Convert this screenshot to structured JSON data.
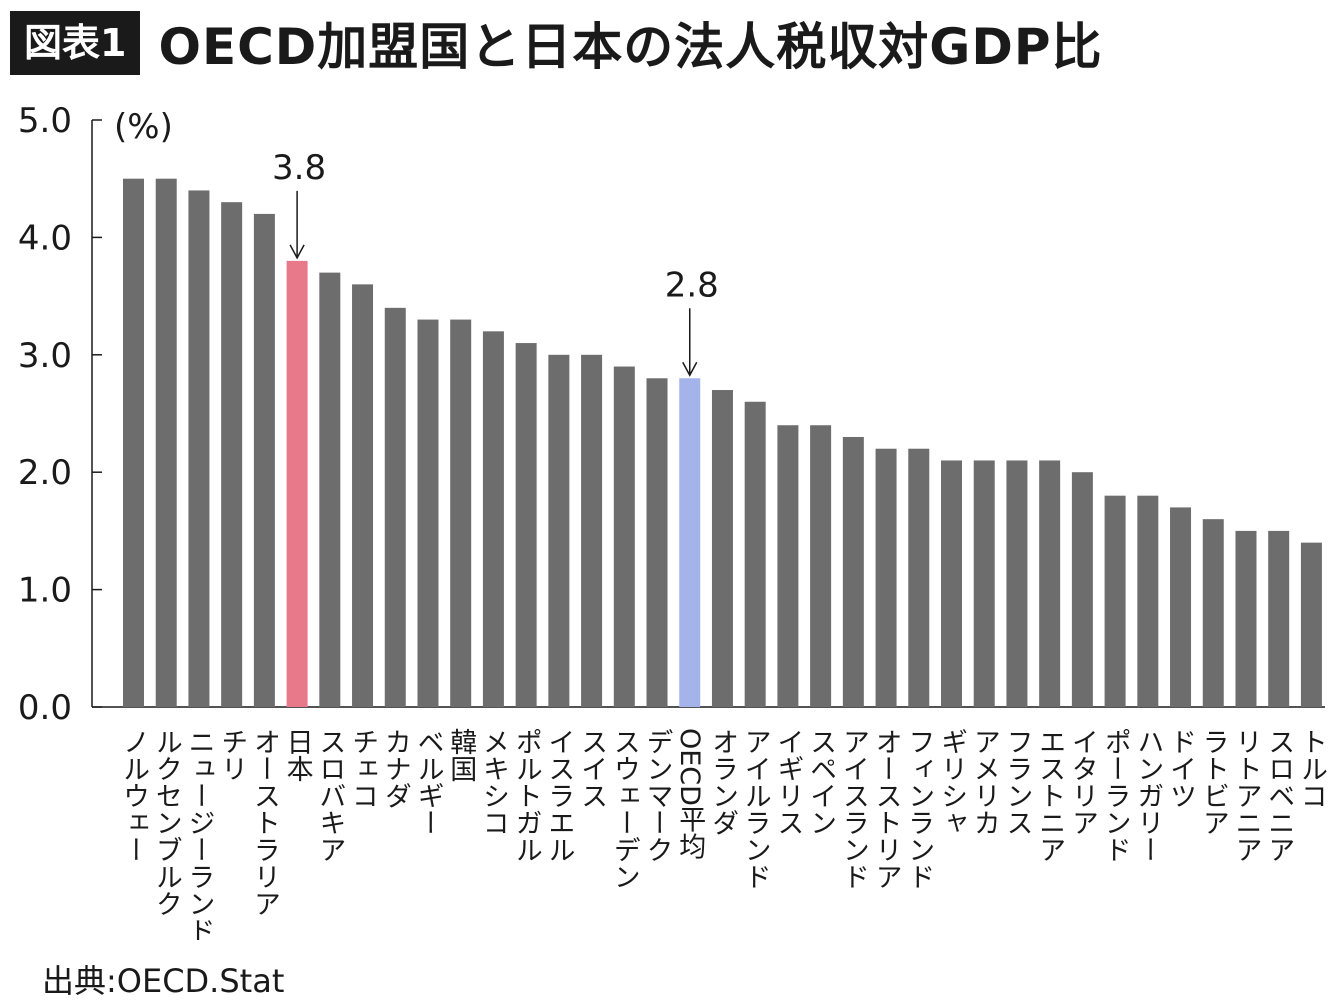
{
  "header": {
    "badge": "図表1",
    "title": "OECD加盟国と日本の法人税収対GDP比"
  },
  "source": "出典:OECD.Stat",
  "colors": {
    "bar_default": "#6d6d6d",
    "bar_japan": "#e8798a",
    "bar_oecd_avg": "#a4b4ea",
    "axis": "#1a1a1a"
  },
  "chart_data": {
    "type": "bar",
    "title": "OECD加盟国と日本の法人税収対GDP比",
    "ylabel": "(%)",
    "xlabel": "",
    "ylim": [
      0,
      5
    ],
    "yticks": [
      "0.0",
      "1.0",
      "2.0",
      "3.0",
      "4.0",
      "5.0"
    ],
    "grid": false,
    "categories": [
      "ノルウェー",
      "ルクセンブルク",
      "ニュージーランド",
      "チリ",
      "オーストラリア",
      "日本",
      "スロバキア",
      "チェコ",
      "カナダ",
      "ベルギー",
      "韓国",
      "メキシコ",
      "ポルトガル",
      "イスラエル",
      "スイス",
      "スウェーデン",
      "デンマーク",
      "OECD平均",
      "オランダ",
      "アイルランド",
      "イギリス",
      "スペイン",
      "アイスランド",
      "オーストリア",
      "フィンランド",
      "ギリシャ",
      "アメリカ",
      "フランス",
      "エストニア",
      "イタリア",
      "ポーランド",
      "ハンガリー",
      "ドイツ",
      "ラトビア",
      "リトアニア",
      "スロベニア",
      "トルコ"
    ],
    "values": [
      4.5,
      4.5,
      4.4,
      4.3,
      4.2,
      3.8,
      3.7,
      3.6,
      3.4,
      3.3,
      3.3,
      3.2,
      3.1,
      3.0,
      3.0,
      2.9,
      2.8,
      2.8,
      2.7,
      2.6,
      2.4,
      2.4,
      2.3,
      2.2,
      2.2,
      2.1,
      2.1,
      2.1,
      2.1,
      2.0,
      1.8,
      1.8,
      1.7,
      1.6,
      1.5,
      1.5,
      1.4
    ],
    "highlights": [
      {
        "category": "日本",
        "label": "3.8",
        "color": "#e8798a"
      },
      {
        "category": "OECD平均",
        "label": "2.8",
        "color": "#a4b4ea"
      }
    ]
  }
}
